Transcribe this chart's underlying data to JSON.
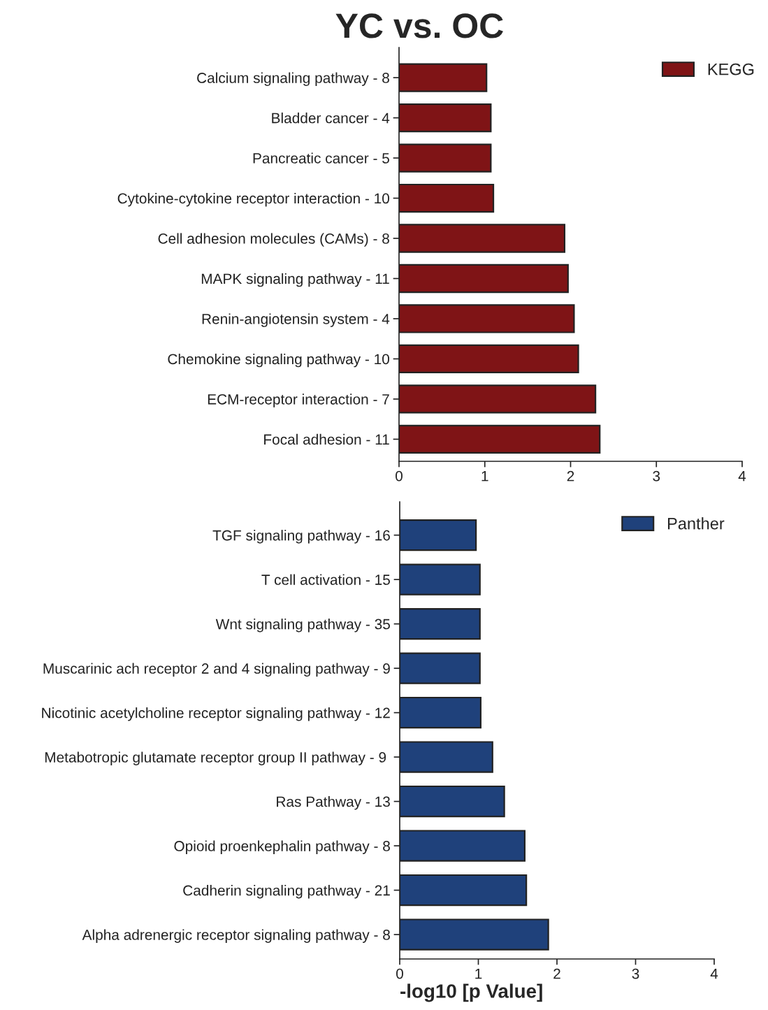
{
  "chart_data": [
    {
      "type": "bar",
      "orientation": "horizontal",
      "title": "YC vs. OC",
      "categories": [
        "Calcium signaling pathway - 8",
        "Bladder cancer - 4",
        "Pancreatic cancer - 5",
        "Cytokine-cytokine receptor interaction - 10",
        "Cell adhesion molecules (CAMs) - 8",
        "MAPK signaling pathway - 11",
        "Renin-angiotensin system - 4",
        "Chemokine signaling pathway - 10",
        "ECM-receptor interaction - 7",
        "Focal adhesion - 11"
      ],
      "series": [
        {
          "name": "KEGG",
          "color": "#7f1416",
          "values": [
            1.02,
            1.07,
            1.07,
            1.1,
            1.93,
            1.97,
            2.04,
            2.09,
            2.29,
            2.34
          ]
        }
      ],
      "xlim": [
        0,
        4
      ],
      "xticks": [
        0,
        1,
        2,
        3,
        4
      ],
      "grid": false,
      "legend": "top right"
    },
    {
      "type": "bar",
      "orientation": "horizontal",
      "xlabel": "-log10 [p Value]",
      "categories": [
        "TGF signaling pathway - 16",
        "T cell activation - 15",
        "Wnt signaling pathway - 35",
        "Muscarinic ach receptor 2 and 4 signaling pathway - 9",
        "Nicotinic acetylcholine receptor signaling pathway - 12",
        "Metabotropic glutamate receptor group II pathway - 9 ",
        "Ras Pathway - 13",
        "Opioid proenkephalin pathway - 8",
        "Cadherin signaling pathway - 21",
        "Alpha adrenergic receptor signaling pathway - 8"
      ],
      "series": [
        {
          "name": "Panther",
          "color": "#1f417b",
          "values": [
            0.97,
            1.02,
            1.02,
            1.02,
            1.03,
            1.18,
            1.33,
            1.59,
            1.61,
            1.89
          ]
        }
      ],
      "xlim": [
        0,
        4
      ],
      "xticks": [
        0,
        1,
        2,
        3,
        4
      ],
      "grid": false,
      "legend": "top right"
    }
  ]
}
